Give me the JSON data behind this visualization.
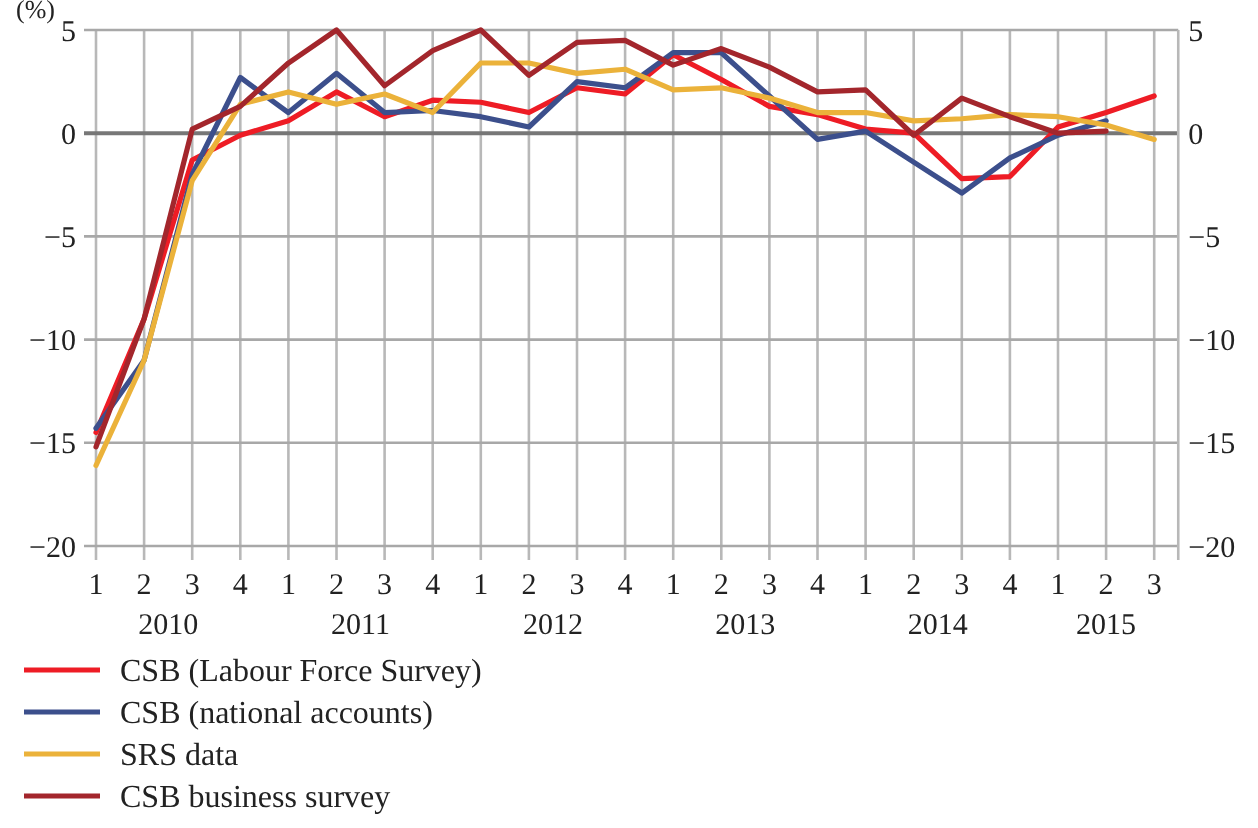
{
  "chart_data": {
    "type": "line",
    "ylabel": "(%)",
    "categories": [
      "1",
      "2",
      "3",
      "4",
      "1",
      "2",
      "3",
      "4",
      "1",
      "2",
      "3",
      "4",
      "1",
      "2",
      "3",
      "4",
      "1",
      "2",
      "3",
      "4",
      "1",
      "2",
      "3"
    ],
    "annotations": [
      "2010",
      "2011",
      "2012",
      "2013",
      "2014",
      "2015"
    ],
    "series": [
      {
        "name": "CSB (Labour Force Survey)",
        "color": "#ee1c25",
        "values": [
          -14.5,
          -9.0,
          -1.3,
          -0.1,
          0.6,
          2.0,
          0.8,
          1.6,
          1.5,
          1.0,
          2.2,
          1.9,
          3.8,
          2.6,
          1.3,
          0.9,
          0.2,
          0.0,
          -2.2,
          -2.1,
          0.3,
          1.0,
          1.8
        ]
      },
      {
        "name": "CSB (national accounts)",
        "color": "#3c4f8c",
        "values": [
          -14.3,
          -11.0,
          -2.0,
          2.7,
          1.0,
          2.9,
          1.0,
          1.1,
          0.8,
          0.3,
          2.5,
          2.2,
          3.9,
          3.9,
          1.8,
          -0.3,
          0.1,
          -1.4,
          -2.9,
          -1.2,
          -0.1,
          0.6,
          null
        ]
      },
      {
        "name": "SRS data",
        "color": "#ebb23a",
        "values": [
          -16.1,
          -11.0,
          -2.3,
          1.4,
          2.0,
          1.4,
          1.9,
          1.0,
          3.4,
          3.4,
          2.9,
          3.1,
          2.1,
          2.2,
          1.7,
          1.0,
          1.0,
          0.6,
          0.7,
          0.9,
          0.8,
          0.4,
          -0.3
        ]
      },
      {
        "name": "CSB business survey",
        "color": "#a3262c",
        "values": [
          -15.2,
          -9.0,
          0.2,
          1.3,
          3.4,
          5.0,
          2.3,
          4.0,
          5.0,
          2.8,
          4.4,
          4.5,
          3.3,
          4.1,
          3.2,
          2.0,
          2.1,
          -0.1,
          1.7,
          0.8,
          0.0,
          0.1,
          null
        ]
      }
    ],
    "ylim": [
      -20,
      5
    ],
    "yticks": [
      {
        "value": -20,
        "label": "−20"
      },
      {
        "value": -15,
        "label": "−15"
      },
      {
        "value": -10,
        "label": "−10"
      },
      {
        "value": -5,
        "label": "−5"
      },
      0,
      5
    ],
    "y2lim": [
      -20,
      5
    ],
    "y2ticks": [
      {
        "value": -20,
        "label": "−20"
      },
      {
        "value": -15,
        "label": "−15"
      },
      {
        "value": -10,
        "label": "−10"
      },
      {
        "value": -5,
        "label": "−5"
      },
      0,
      5
    ],
    "grid": true,
    "legend": "bottom left",
    "marker": "none",
    "line_style": "solid"
  }
}
